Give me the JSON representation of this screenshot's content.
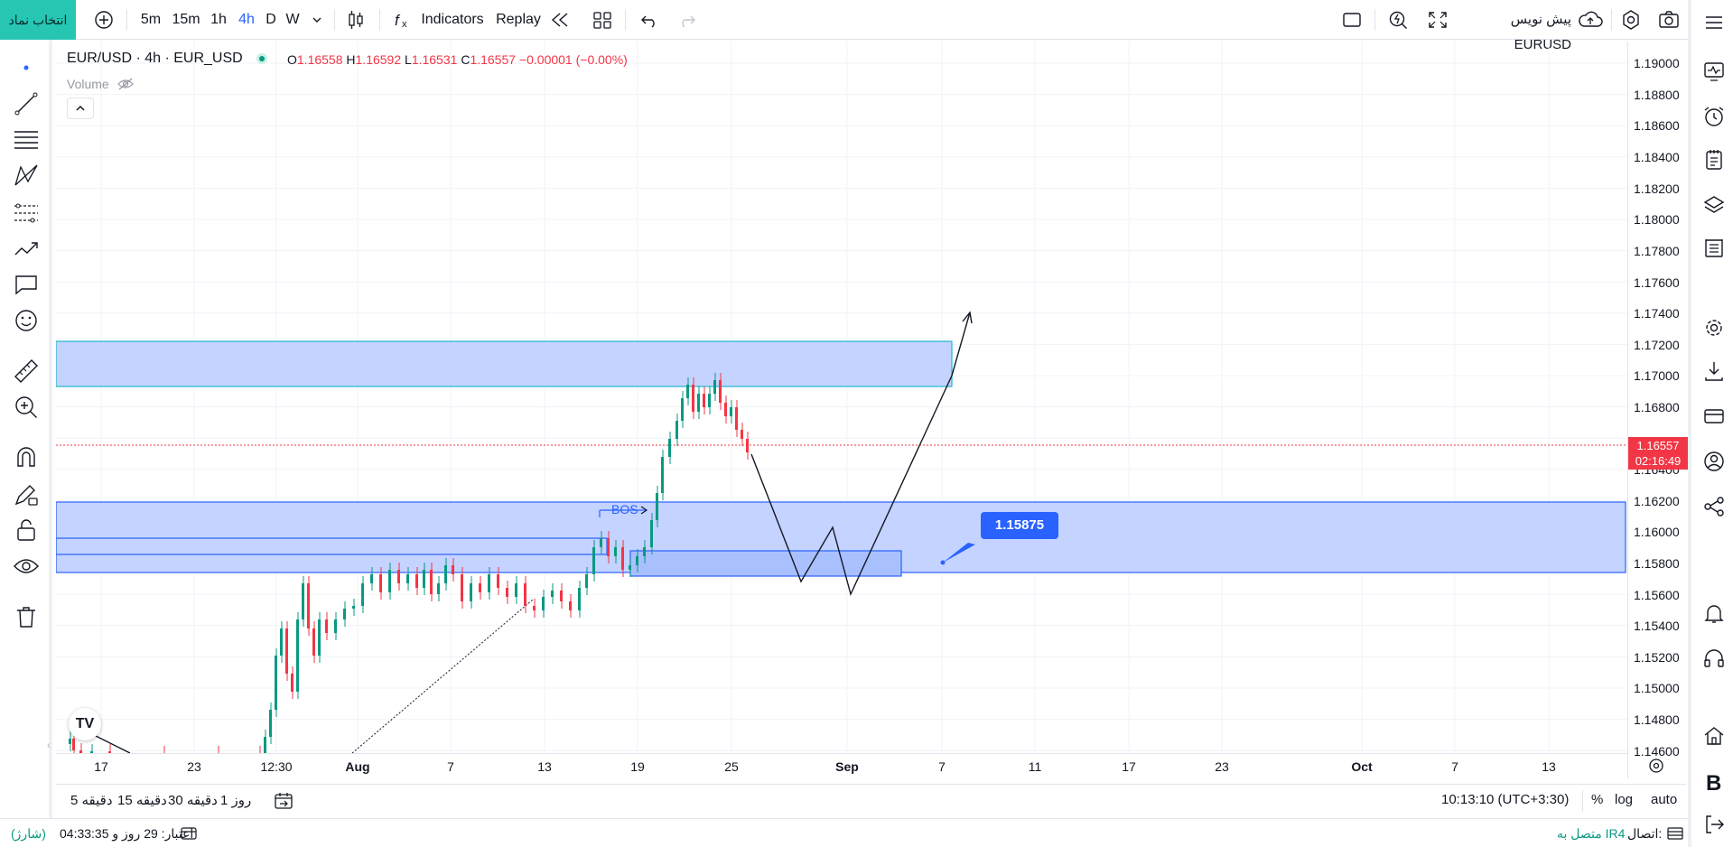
{
  "topbar": {
    "symbol_search_label": "انتخاب نماد",
    "timeframes": [
      "5m",
      "15m",
      "1h",
      "4h",
      "D",
      "W"
    ],
    "active_timeframe": "4h",
    "indicators_label": "Indicators",
    "replay_label": "Replay",
    "symbol_label": "EURUSD",
    "draft_label": "پیش نویس"
  },
  "legend": {
    "title": "EUR/USD · 4h · EUR_USD",
    "ohlc": {
      "o_label": "O",
      "o": "1.16558",
      "h_label": "H",
      "h": "1.16592",
      "l_label": "L",
      "l": "1.16531",
      "c_label": "C",
      "c": "1.16557",
      "change": "−0.00001 (−0.00%)"
    },
    "volume_label": "Volume"
  },
  "price_axis": {
    "labels": [
      "1.19000",
      "1.18800",
      "1.18600",
      "1.18400",
      "1.18200",
      "1.18000",
      "1.17800",
      "1.17600",
      "1.17400",
      "1.17200",
      "1.17000",
      "1.16800",
      "1.16400",
      "1.16200",
      "1.16000",
      "1.15800",
      "1.15600",
      "1.15400",
      "1.15200",
      "1.15000",
      "1.14800",
      "1.14600"
    ],
    "current_price": "1.16557",
    "countdown": "02:16:49"
  },
  "time_axis": {
    "labels": [
      {
        "text": "17",
        "bold": false
      },
      {
        "text": "23",
        "bold": false
      },
      {
        "text": "12:30",
        "bold": false
      },
      {
        "text": "Aug",
        "bold": true
      },
      {
        "text": "7",
        "bold": false
      },
      {
        "text": "13",
        "bold": false
      },
      {
        "text": "19",
        "bold": false
      },
      {
        "text": "25",
        "bold": false
      },
      {
        "text": "Sep",
        "bold": true
      },
      {
        "text": "7",
        "bold": false
      },
      {
        "text": "11",
        "bold": false
      },
      {
        "text": "17",
        "bold": false
      },
      {
        "text": "23",
        "bold": false
      },
      {
        "text": "Oct",
        "bold": true
      },
      {
        "text": "7",
        "bold": false
      },
      {
        "text": "13",
        "bold": false
      }
    ]
  },
  "annotations": {
    "bos_label": "BOS",
    "price_callout": "1.15875",
    "logo_text": "TV"
  },
  "bottombar": {
    "ranges": [
      "5 دقیقه",
      "15 دقیقه",
      "30 دقیقه",
      "1 روز"
    ],
    "clock": "10:13:10 (UTC+3:30)",
    "percent_label": "%",
    "log_label": "log",
    "auto_label": "auto"
  },
  "statusbar": {
    "credit_label": "اعتبار: 29 روز و 04:33:35",
    "recharge_label": "(شارژ)",
    "connection_label": "اتصال:",
    "connection_value": "متصل به IR4"
  },
  "colors": {
    "accent": "#2962ff",
    "up": "#089981",
    "down": "#f23645",
    "brand": "#26c6b3",
    "zone_fill": "#c4d3ff"
  }
}
